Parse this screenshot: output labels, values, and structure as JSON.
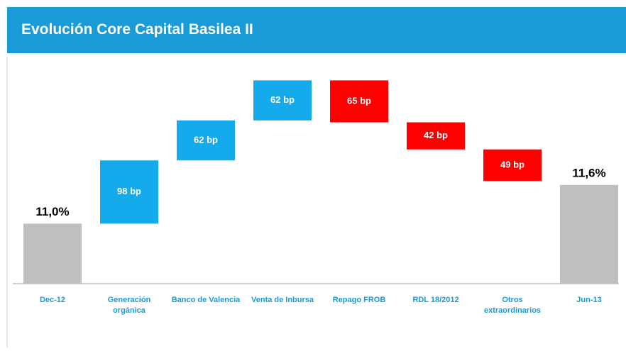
{
  "chart_data": {
    "type": "waterfall",
    "title": "Evolución Core Capital Basilea II",
    "categories": [
      "Dec-12",
      "Generación orgánica",
      "Banco de Valencia",
      "Venta de Inbursa",
      "Repago FROB",
      "RDL 18/2012",
      "Otros extraordinarios",
      "Jun-13"
    ],
    "measure": [
      "total",
      "relative",
      "relative",
      "relative",
      "relative",
      "relative",
      "relative",
      "total"
    ],
    "values": [
      11.0,
      0.98,
      0.62,
      0.62,
      -0.65,
      -0.42,
      -0.49,
      11.6
    ],
    "value_labels": [
      "11,0%",
      "98 bp",
      "62 bp",
      "62 bp",
      "65 bp",
      "42 bp",
      "49 bp",
      "11,6%"
    ],
    "colors": {
      "total": "#bfbfbf",
      "increase": "#14aaeb",
      "decrease": "#ff0000"
    },
    "ylim": [
      10.07,
      13.4
    ]
  }
}
